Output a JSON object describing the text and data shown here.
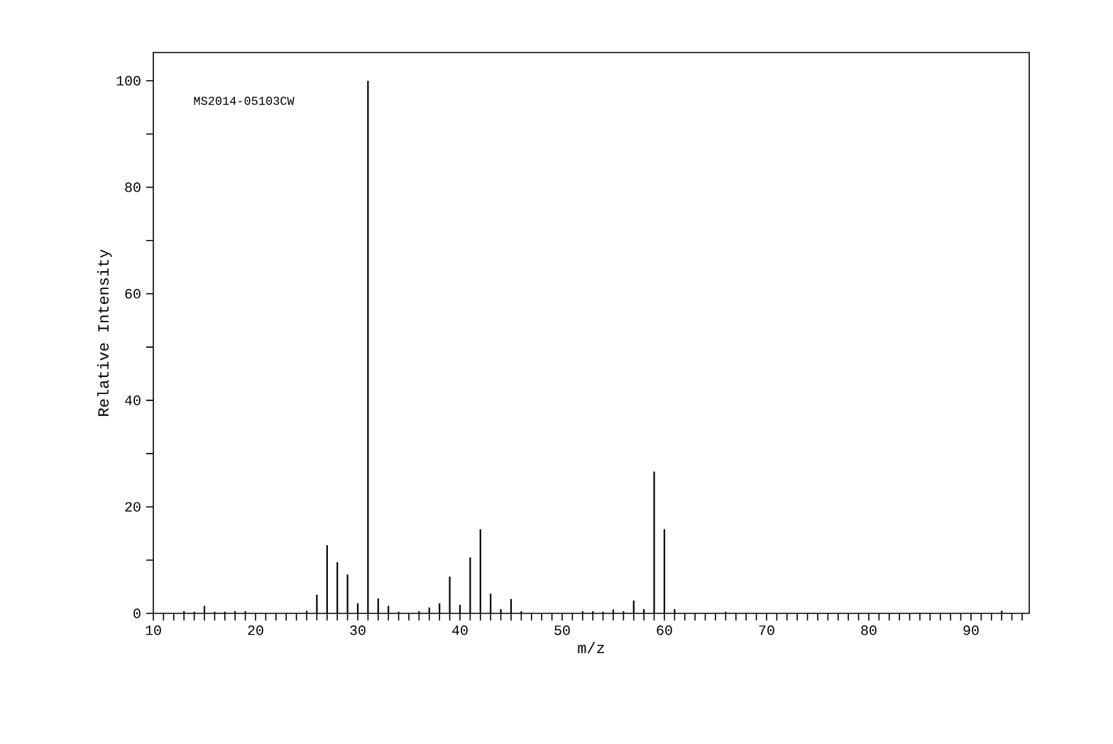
{
  "chart_data": {
    "type": "bar",
    "xlabel": "m/z",
    "ylabel": "Relative Intensity",
    "annotations": [
      "MS2014-05103CW"
    ],
    "x": [
      13,
      14,
      15,
      16,
      17,
      18,
      19,
      25,
      26,
      27,
      28,
      29,
      30,
      31,
      32,
      33,
      34,
      36,
      37,
      38,
      39,
      40,
      41,
      42,
      43,
      44,
      45,
      46,
      52,
      53,
      54,
      55,
      56,
      57,
      58,
      59,
      60,
      61,
      66,
      93
    ],
    "values": [
      0.4,
      0.3,
      1.4,
      0.3,
      0.3,
      0.4,
      0.4,
      0.5,
      3.5,
      12.8,
      9.6,
      7.3,
      1.9,
      100,
      2.8,
      1.4,
      0.3,
      0.4,
      1.1,
      1.9,
      6.9,
      1.6,
      10.5,
      15.8,
      3.7,
      0.8,
      2.7,
      0.4,
      0.4,
      0.4,
      0.3,
      0.7,
      0.4,
      2.4,
      0.8,
      26.6,
      15.8,
      0.8,
      0.3,
      0.5
    ],
    "color": "#000000",
    "xlim": [
      10,
      95.7
    ],
    "ylim": [
      0,
      105.3
    ],
    "xticks": [
      10,
      {
        "value": 11,
        "label": null
      },
      {
        "value": 12,
        "label": null
      },
      {
        "value": 13,
        "label": null
      },
      {
        "value": 14,
        "label": null
      },
      {
        "value": 15,
        "label": null
      },
      {
        "value": 16,
        "label": null
      },
      {
        "value": 17,
        "label": null
      },
      {
        "value": 18,
        "label": null
      },
      {
        "value": 19,
        "label": null
      },
      20,
      {
        "value": 21,
        "label": null
      },
      {
        "value": 22,
        "label": null
      },
      {
        "value": 23,
        "label": null
      },
      {
        "value": 24,
        "label": null
      },
      {
        "value": 25,
        "label": null
      },
      {
        "value": 26,
        "label": null
      },
      {
        "value": 27,
        "label": null
      },
      {
        "value": 28,
        "label": null
      },
      {
        "value": 29,
        "label": null
      },
      30,
      {
        "value": 31,
        "label": null
      },
      {
        "value": 32,
        "label": null
      },
      {
        "value": 33,
        "label": null
      },
      {
        "value": 34,
        "label": null
      },
      {
        "value": 35,
        "label": null
      },
      {
        "value": 36,
        "label": null
      },
      {
        "value": 37,
        "label": null
      },
      {
        "value": 38,
        "label": null
      },
      {
        "value": 39,
        "label": null
      },
      40,
      {
        "value": 41,
        "label": null
      },
      {
        "value": 42,
        "label": null
      },
      {
        "value": 43,
        "label": null
      },
      {
        "value": 44,
        "label": null
      },
      {
        "value": 45,
        "label": null
      },
      {
        "value": 46,
        "label": null
      },
      {
        "value": 47,
        "label": null
      },
      {
        "value": 48,
        "label": null
      },
      {
        "value": 49,
        "label": null
      },
      50,
      {
        "value": 51,
        "label": null
      },
      {
        "value": 52,
        "label": null
      },
      {
        "value": 53,
        "label": null
      },
      {
        "value": 54,
        "label": null
      },
      {
        "value": 55,
        "label": null
      },
      {
        "value": 56,
        "label": null
      },
      {
        "value": 57,
        "label": null
      },
      {
        "value": 58,
        "label": null
      },
      {
        "value": 59,
        "label": null
      },
      60,
      {
        "value": 61,
        "label": null
      },
      {
        "value": 62,
        "label": null
      },
      {
        "value": 63,
        "label": null
      },
      {
        "value": 64,
        "label": null
      },
      {
        "value": 65,
        "label": null
      },
      {
        "value": 66,
        "label": null
      },
      {
        "value": 67,
        "label": null
      },
      {
        "value": 68,
        "label": null
      },
      {
        "value": 69,
        "label": null
      },
      70,
      {
        "value": 71,
        "label": null
      },
      {
        "value": 72,
        "label": null
      },
      {
        "value": 73,
        "label": null
      },
      {
        "value": 74,
        "label": null
      },
      {
        "value": 75,
        "label": null
      },
      {
        "value": 76,
        "label": null
      },
      {
        "value": 77,
        "label": null
      },
      {
        "value": 78,
        "label": null
      },
      {
        "value": 79,
        "label": null
      },
      80,
      {
        "value": 81,
        "label": null
      },
      {
        "value": 82,
        "label": null
      },
      {
        "value": 83,
        "label": null
      },
      {
        "value": 84,
        "label": null
      },
      {
        "value": 85,
        "label": null
      },
      {
        "value": 86,
        "label": null
      },
      {
        "value": 87,
        "label": null
      },
      {
        "value": 88,
        "label": null
      },
      {
        "value": 89,
        "label": null
      },
      90,
      {
        "value": 91,
        "label": null
      },
      {
        "value": 92,
        "label": null
      },
      {
        "value": 93,
        "label": null
      },
      {
        "value": 94,
        "label": null
      },
      {
        "value": 95,
        "label": null
      }
    ],
    "yticks": [
      0,
      {
        "value": 10,
        "label": null
      },
      20,
      {
        "value": 30,
        "label": null
      },
      40,
      {
        "value": 50,
        "label": null
      },
      60,
      {
        "value": 70,
        "label": null
      },
      80,
      {
        "value": 90,
        "label": null
      },
      100
    ],
    "grid": false
  }
}
